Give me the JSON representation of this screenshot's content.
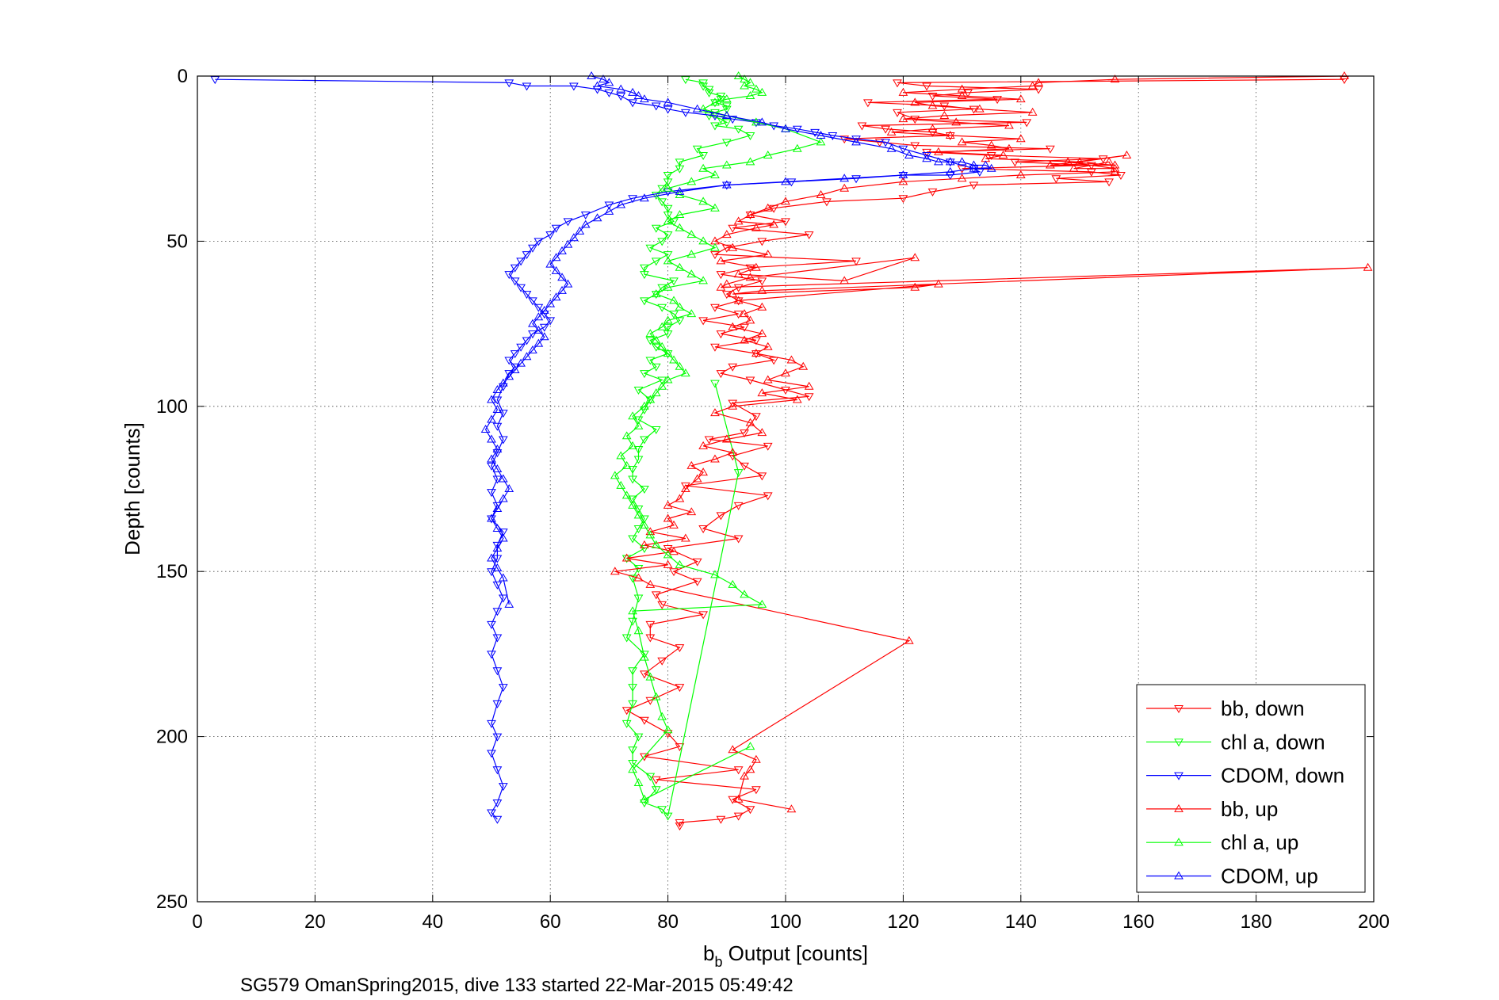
{
  "chart_data": {
    "type": "scatter",
    "xlabel_main": "b",
    "xlabel_sub": "b",
    "xlabel_rest": " Output [counts]",
    "ylabel": "Depth [counts]",
    "caption": "SG579 OmanSpring2015, dive 133 started 22-Mar-2015 05:49:42",
    "xlim": [
      0,
      200
    ],
    "ylim": [
      0,
      250
    ],
    "y_reversed": true,
    "grid": true,
    "xticks": [
      "0",
      "20",
      "40",
      "60",
      "80",
      "100",
      "120",
      "140",
      "160",
      "180",
      "200"
    ],
    "yticks": [
      "0",
      "50",
      "100",
      "150",
      "200",
      "250"
    ],
    "legend_position": "bottom-right",
    "series": [
      {
        "name": "bb, down",
        "color": "#ff0000",
        "marker": "triangle-down",
        "x": [
          195,
          119,
          124,
          143,
          131,
          125,
          136,
          114,
          127,
          132,
          119,
          122,
          141,
          113,
          117,
          125,
          128,
          110,
          116,
          122,
          145,
          124,
          135,
          154,
          139,
          152,
          130,
          152,
          157,
          146,
          155,
          132,
          125,
          120,
          107,
          98,
          94,
          100,
          91,
          104,
          96,
          90,
          88,
          112,
          94,
          89,
          96,
          92,
          90,
          92,
          88,
          92,
          86,
          93,
          89,
          95,
          88,
          95,
          98,
          91,
          89,
          94,
          100,
          104,
          91,
          95,
          93,
          87,
          97,
          91,
          93,
          96,
          83,
          97,
          92,
          89,
          86,
          92,
          80,
          85,
          81,
          85,
          78,
          79,
          86,
          77,
          77,
          82,
          79,
          76,
          82,
          77,
          73,
          76,
          80,
          82,
          76,
          92,
          78,
          95,
          91,
          94,
          92,
          89,
          82,
          82
        ],
        "y": [
          1,
          2,
          3,
          4,
          5,
          6,
          7,
          8,
          9,
          10,
          11,
          13,
          14,
          15,
          16,
          17,
          18,
          19,
          20,
          21,
          22,
          23,
          24,
          25,
          26,
          27,
          28,
          29,
          30,
          31,
          32,
          33,
          35,
          37,
          38,
          40,
          42,
          44,
          46,
          48,
          50,
          52,
          54,
          56,
          58,
          60,
          62,
          64,
          66,
          68,
          70,
          72,
          74,
          76,
          78,
          80,
          82,
          84,
          86,
          88,
          90,
          92,
          95,
          97,
          99,
          103,
          108,
          110,
          112,
          115,
          118,
          121,
          124,
          127,
          130,
          133,
          137,
          140,
          143,
          147,
          150,
          153,
          157,
          160,
          163,
          166,
          170,
          173,
          177,
          181,
          185,
          189,
          192,
          195,
          199,
          203,
          206,
          210,
          213,
          216,
          219,
          222,
          224,
          225,
          226,
          227
        ]
      },
      {
        "name": "chl a, down",
        "color": "#00ff00",
        "marker": "triangle-down",
        "x": [
          83,
          86,
          86,
          87,
          87,
          89,
          89,
          88,
          90,
          90,
          88,
          87,
          89,
          90,
          88,
          92,
          94,
          90,
          85,
          86,
          82,
          82,
          80,
          80,
          79,
          78,
          79,
          80,
          80,
          81,
          78,
          80,
          79,
          77,
          80,
          78,
          76,
          76,
          81,
          79,
          78,
          76,
          79,
          81,
          82,
          80,
          80,
          77,
          78,
          80,
          77,
          78,
          76,
          79,
          75,
          77,
          76,
          75,
          78,
          76,
          75,
          75,
          74,
          74,
          76,
          74,
          75,
          76,
          75,
          74,
          76,
          73,
          75,
          74,
          75,
          74,
          73,
          76,
          74,
          74,
          74,
          73,
          75,
          74,
          74,
          77,
          78,
          76,
          79,
          80,
          92,
          88
        ],
        "y": [
          1,
          2,
          3,
          4,
          5,
          6,
          7,
          8,
          9,
          10,
          11,
          12,
          13,
          14,
          15,
          16,
          18,
          20,
          22,
          24,
          26,
          28,
          30,
          32,
          34,
          36,
          38,
          40,
          42,
          44,
          46,
          48,
          50,
          52,
          54,
          56,
          58,
          60,
          62,
          64,
          66,
          68,
          70,
          72,
          74,
          76,
          78,
          80,
          82,
          84,
          86,
          88,
          90,
          92,
          95,
          98,
          101,
          104,
          107,
          110,
          113,
          116,
          119,
          122,
          125,
          128,
          131,
          134,
          137,
          140,
          143,
          146,
          149,
          152,
          158,
          165,
          170,
          175,
          180,
          185,
          190,
          196,
          200,
          204,
          208,
          212,
          216,
          220,
          222,
          224,
          120,
          93
        ]
      },
      {
        "name": "CDOM, down",
        "color": "#0000ff",
        "marker": "triangle-down",
        "x": [
          3,
          53,
          56,
          64,
          68,
          70,
          72,
          74,
          78,
          80,
          83,
          88,
          91,
          95,
          98,
          102,
          105,
          108,
          112,
          117,
          120,
          124,
          128,
          132,
          133,
          128,
          120,
          112,
          101,
          90,
          80,
          74,
          70,
          66,
          63,
          61,
          60,
          58,
          57,
          56,
          55,
          54,
          53,
          54,
          55,
          56,
          57,
          58,
          59,
          60,
          59,
          57,
          56,
          55,
          54,
          53,
          54,
          53,
          52,
          51,
          52,
          51,
          52,
          51,
          50,
          51,
          50,
          51,
          50,
          52,
          51,
          51,
          50,
          51,
          52,
          51,
          50,
          51,
          50,
          51,
          52,
          51,
          50,
          51,
          50,
          51,
          52,
          51,
          50,
          51
        ],
        "y": [
          1,
          2,
          3,
          3,
          4,
          5,
          6,
          8,
          9,
          10,
          11,
          12,
          13,
          14,
          15,
          16,
          17,
          18,
          19,
          20,
          22,
          24,
          26,
          28,
          29,
          30,
          30,
          31,
          32,
          33,
          35,
          37,
          39,
          42,
          44,
          46,
          48,
          50,
          52,
          54,
          56,
          58,
          60,
          62,
          64,
          66,
          68,
          70,
          72,
          74,
          76,
          78,
          80,
          82,
          84,
          86,
          88,
          90,
          94,
          98,
          102,
          106,
          110,
          114,
          118,
          122,
          126,
          130,
          134,
          138,
          142,
          146,
          150,
          154,
          158,
          162,
          166,
          170,
          175,
          180,
          185,
          190,
          196,
          200,
          205,
          210,
          215,
          220,
          223,
          225
        ]
      },
      {
        "name": "bb, up",
        "color": "#ff0000",
        "marker": "triangle-up",
        "x": [
          195,
          156,
          143,
          142,
          130,
          120,
          130,
          140,
          122,
          125,
          133,
          142,
          127,
          120,
          129,
          138,
          125,
          118,
          128,
          140,
          130,
          135,
          138,
          126,
          137,
          134,
          150,
          158,
          145,
          156,
          148,
          156,
          149,
          155,
          156,
          140,
          130,
          120,
          110,
          106,
          100,
          97,
          94,
          92,
          98,
          95,
          90,
          88,
          91,
          97,
          89,
          95,
          92,
          110,
          122,
          94,
          90,
          89,
          199,
          96,
          91,
          122,
          126,
          92,
          96,
          93,
          94,
          91,
          96,
          93,
          97,
          95,
          101,
          103,
          100,
          97,
          104,
          96,
          102,
          91,
          88,
          94,
          96,
          90,
          86,
          91,
          88,
          84,
          86,
          85,
          83,
          82,
          80,
          84,
          80,
          81,
          77,
          83,
          76,
          81,
          73,
          80,
          71,
          75,
          77,
          121,
          91,
          95,
          94,
          93,
          92,
          101
        ],
        "y": [
          0,
          1,
          2,
          3,
          4,
          5,
          6,
          7,
          8,
          9,
          10,
          11,
          12,
          13,
          14,
          15,
          16,
          17,
          18,
          19,
          20,
          21,
          22,
          23,
          24,
          25,
          26,
          24,
          27,
          27,
          26,
          28,
          28,
          26,
          29,
          30,
          31,
          32,
          34,
          36,
          38,
          40,
          42,
          44,
          45,
          46,
          48,
          50,
          52,
          54,
          56,
          58,
          60,
          62,
          55,
          61,
          63,
          64,
          58,
          65,
          66,
          64,
          63,
          68,
          70,
          72,
          74,
          76,
          78,
          80,
          82,
          84,
          86,
          88,
          90,
          92,
          94,
          96,
          98,
          100,
          102,
          105,
          108,
          110,
          112,
          114,
          116,
          118,
          120,
          122,
          125,
          128,
          130,
          132,
          134,
          136,
          138,
          140,
          142,
          144,
          146,
          148,
          150,
          152,
          154,
          171,
          204,
          207,
          210,
          212,
          219,
          222
        ]
      },
      {
        "name": "chl a, up",
        "color": "#00ff00",
        "marker": "triangle-up",
        "x": [
          92,
          93,
          94,
          93,
          95,
          96,
          94,
          90,
          88,
          86,
          90,
          95,
          100,
          106,
          102,
          97,
          94,
          90,
          86,
          88,
          84,
          80,
          82,
          86,
          88,
          82,
          80,
          82,
          84,
          86,
          88,
          84,
          80,
          82,
          84,
          86,
          80,
          78,
          81,
          82,
          84,
          80,
          79,
          77,
          78,
          79,
          80,
          81,
          82,
          83,
          80,
          79,
          78,
          77,
          76,
          74,
          75,
          73,
          74,
          72,
          73,
          71,
          72,
          73,
          74,
          75,
          76,
          77,
          78,
          80,
          82,
          88,
          91,
          93,
          96,
          74,
          75,
          76,
          77,
          78,
          79,
          80,
          74,
          75,
          76,
          94
        ],
        "y": [
          0,
          1,
          2,
          3,
          4,
          5,
          6,
          7,
          8,
          10,
          12,
          14,
          16,
          20,
          22,
          24,
          26,
          27,
          28,
          30,
          32,
          34,
          36,
          38,
          40,
          42,
          44,
          46,
          48,
          50,
          52,
          54,
          56,
          58,
          60,
          62,
          64,
          66,
          68,
          70,
          72,
          74,
          76,
          78,
          80,
          82,
          84,
          86,
          88,
          90,
          92,
          94,
          96,
          98,
          100,
          103,
          106,
          109,
          112,
          115,
          118,
          121,
          124,
          127,
          130,
          133,
          136,
          139,
          142,
          145,
          148,
          151,
          154,
          157,
          160,
          162,
          168,
          176,
          182,
          188,
          194,
          198,
          210,
          214,
          219,
          203
        ]
      },
      {
        "name": "CDOM, up",
        "color": "#0000ff",
        "marker": "triangle-up",
        "x": [
          67,
          69,
          70,
          68,
          72,
          74,
          75,
          76,
          80,
          85,
          90,
          96,
          100,
          106,
          112,
          118,
          121,
          124,
          126,
          128,
          130,
          132,
          134,
          135,
          132,
          128,
          120,
          110,
          100,
          90,
          82,
          76,
          72,
          70,
          68,
          66,
          65,
          64,
          63,
          62,
          61,
          60,
          61,
          62,
          63,
          62,
          61,
          60,
          59,
          58,
          57,
          58,
          59,
          58,
          57,
          56,
          55,
          54,
          53,
          52,
          51,
          50,
          51,
          50,
          49,
          50,
          51,
          50,
          51,
          52,
          53,
          52,
          51,
          50,
          51,
          52,
          51,
          50,
          51,
          52,
          53
        ],
        "y": [
          0,
          1,
          2,
          3,
          4,
          5,
          6,
          7,
          8,
          10,
          12,
          14,
          16,
          18,
          20,
          22,
          24,
          25,
          26,
          26,
          26,
          27,
          27,
          28,
          28,
          29,
          30,
          31,
          32,
          33,
          35,
          37,
          39,
          41,
          43,
          45,
          47,
          49,
          51,
          53,
          55,
          57,
          59,
          61,
          63,
          65,
          67,
          69,
          71,
          73,
          75,
          77,
          79,
          81,
          83,
          85,
          87,
          89,
          91,
          93,
          95,
          98,
          101,
          104,
          107,
          110,
          113,
          116,
          119,
          122,
          125,
          128,
          131,
          134,
          137,
          140,
          143,
          146,
          149,
          152,
          160
        ]
      }
    ]
  }
}
